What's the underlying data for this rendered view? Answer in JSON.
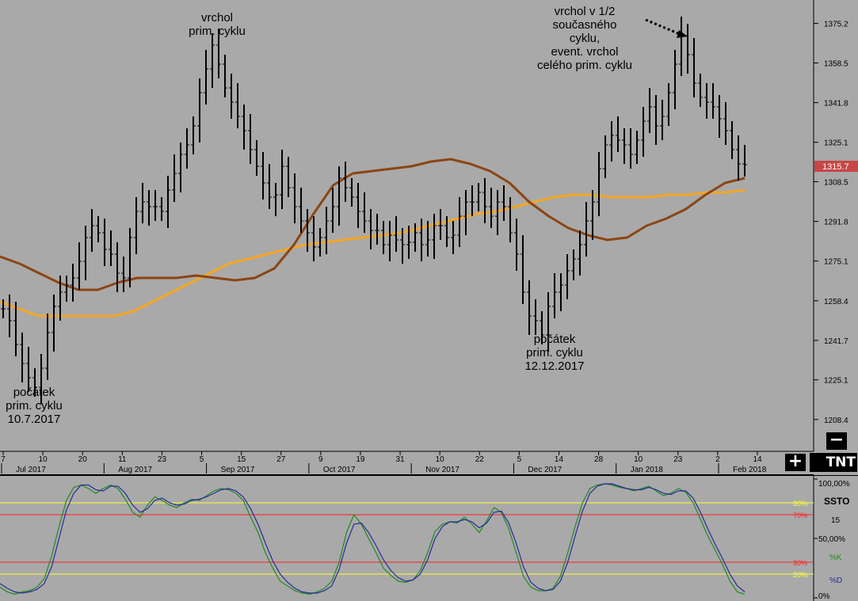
{
  "chart_data": [
    {
      "type": "ohlc",
      "y_axis": {
        "ylim": [
          1195,
          1385
        ],
        "ticks": [
          "1375.2",
          "1358.5",
          "1341.8",
          "1325.1",
          "1308.5",
          "1291.8",
          "1275.1",
          "1258.4",
          "1241.7",
          "1225.1",
          "1208.4"
        ],
        "current_price": "1315.7"
      },
      "x_axis": {
        "day_ticks": [
          "7",
          "10",
          "20",
          "11",
          "23",
          "5",
          "15",
          "27",
          "9",
          "19",
          "31",
          "10",
          "22",
          "5",
          "14",
          "28",
          "10",
          "23",
          "2",
          "14"
        ],
        "month_labels": [
          "Jul 2017",
          "Aug 2017",
          "Sep 2017",
          "Oct 2017",
          "Nov 2017",
          "Dec 2017",
          "Jan 2018",
          "Feb 2018"
        ]
      },
      "series_ma_fast": [
        1277,
        1274,
        1270,
        1266,
        1263,
        1263,
        1266,
        1268,
        1268,
        1268,
        1269,
        1268,
        1267,
        1268,
        1272,
        1282,
        1295,
        1307,
        1312,
        1313,
        1314,
        1315,
        1317,
        1318,
        1316,
        1313,
        1308,
        1300,
        1294,
        1289,
        1286,
        1284,
        1285,
        1290,
        1293,
        1297,
        1303,
        1308,
        1310
      ],
      "series_ma_slow": [
        1258,
        1255,
        1252,
        1252,
        1252,
        1252,
        1252,
        1254,
        1258,
        1262,
        1266,
        1270,
        1274,
        1276,
        1278,
        1280,
        1282,
        1283,
        1284,
        1285,
        1286,
        1287,
        1289,
        1291,
        1293,
        1295,
        1296,
        1298,
        1300,
        1302,
        1303,
        1303,
        1302,
        1302,
        1302,
        1303,
        1303,
        1304,
        1304,
        1305
      ],
      "bars_close": [
        1255,
        1250,
        1240,
        1232,
        1226,
        1222,
        1230,
        1245,
        1256,
        1262,
        1265,
        1268,
        1275,
        1285,
        1290,
        1287,
        1280,
        1278,
        1270,
        1268,
        1285,
        1296,
        1300,
        1298,
        1298,
        1296,
        1305,
        1312,
        1320,
        1324,
        1332,
        1346,
        1356,
        1366,
        1358,
        1348,
        1342,
        1336,
        1330,
        1322,
        1315,
        1308,
        1302,
        1303,
        1315,
        1306,
        1298,
        1292,
        1287,
        1281,
        1285,
        1292,
        1298,
        1310,
        1306,
        1302,
        1296,
        1292,
        1288,
        1288,
        1282,
        1286,
        1284,
        1282,
        1283,
        1287,
        1282,
        1284,
        1290,
        1290,
        1285,
        1286,
        1294,
        1300,
        1300,
        1304,
        1298,
        1294,
        1300,
        1298,
        1287,
        1278,
        1262,
        1252,
        1250,
        1244,
        1256,
        1262,
        1265,
        1271,
        1276,
        1282,
        1292,
        1300,
        1314,
        1324,
        1328,
        1326,
        1324,
        1320,
        1326,
        1334,
        1340,
        1332,
        1336,
        1346,
        1358,
        1370,
        1362,
        1350,
        1344,
        1342,
        1340,
        1335,
        1330,
        1322,
        1316,
        1315.7
      ],
      "annotations": [
        {
          "lines": [
            "vrchol",
            "prim. cyklu"
          ]
        },
        {
          "lines": [
            "vrchol v 1/2",
            "současného",
            "cyklu,",
            "event. vrchol",
            "celého prim. cyklu"
          ]
        },
        {
          "lines": [
            "počátek",
            "prim. cyklu",
            "10.7.2017"
          ]
        },
        {
          "lines": [
            "počátek",
            "prim. cyklu",
            "12.12.2017"
          ]
        }
      ]
    },
    {
      "type": "line",
      "title": "SSTO",
      "period": "15",
      "ylim": [
        0,
        100
      ],
      "levels": [
        {
          "value": 80,
          "label": "80%",
          "color": "#ffff33"
        },
        {
          "value": 70,
          "label": "70%",
          "color": "#ff2020"
        },
        {
          "value": 30,
          "label": "30%",
          "color": "#ff2020"
        },
        {
          "value": 20,
          "label": "20%",
          "color": "#ffff33"
        }
      ],
      "axis_labels": [
        "100,00%",
        "50,00%",
        "0%"
      ],
      "series": [
        {
          "name": "%K",
          "color": "#1f8a1f",
          "values": [
            9,
            5,
            3,
            5,
            6,
            9,
            16,
            35,
            60,
            82,
            93,
            95,
            92,
            88,
            92,
            95,
            92,
            83,
            72,
            68,
            78,
            85,
            82,
            78,
            76,
            80,
            83,
            82,
            86,
            90,
            92,
            91,
            88,
            82,
            68,
            55,
            38,
            25,
            14,
            10,
            6,
            4,
            3,
            5,
            8,
            14,
            30,
            55,
            70,
            62,
            50,
            38,
            25,
            19,
            14,
            13,
            15,
            23,
            38,
            56,
            62,
            64,
            63,
            68,
            62,
            55,
            65,
            76,
            72,
            58,
            38,
            18,
            9,
            6,
            6,
            8,
            18,
            38,
            60,
            80,
            92,
            95,
            96,
            95,
            93,
            92,
            90,
            92,
            94,
            90,
            86,
            88,
            92,
            89,
            80,
            66,
            52,
            40,
            28,
            14,
            5,
            3
          ]
        },
        {
          "name": "%D",
          "color": "#2a2a9a",
          "values": [
            12,
            8,
            5,
            4,
            5,
            7,
            12,
            26,
            50,
            74,
            88,
            95,
            95,
            91,
            90,
            94,
            94,
            88,
            78,
            72,
            75,
            82,
            84,
            80,
            78,
            79,
            82,
            83,
            85,
            88,
            91,
            92,
            90,
            85,
            75,
            62,
            46,
            31,
            20,
            13,
            8,
            5,
            4,
            4,
            6,
            10,
            24,
            46,
            62,
            63,
            55,
            44,
            32,
            23,
            17,
            14,
            15,
            20,
            32,
            50,
            60,
            64,
            64,
            66,
            64,
            59,
            63,
            72,
            73,
            63,
            46,
            26,
            13,
            8,
            6,
            7,
            14,
            30,
            52,
            73,
            88,
            94,
            96,
            96,
            94,
            92,
            91,
            91,
            93,
            91,
            88,
            87,
            90,
            90,
            84,
            72,
            58,
            45,
            33,
            20,
            10,
            5
          ]
        }
      ]
    }
  ],
  "ui": {
    "plus_button": "+",
    "minus_button": "−",
    "logo": "TNT",
    "panel_label_k": "%K",
    "panel_label_d": "%D"
  }
}
